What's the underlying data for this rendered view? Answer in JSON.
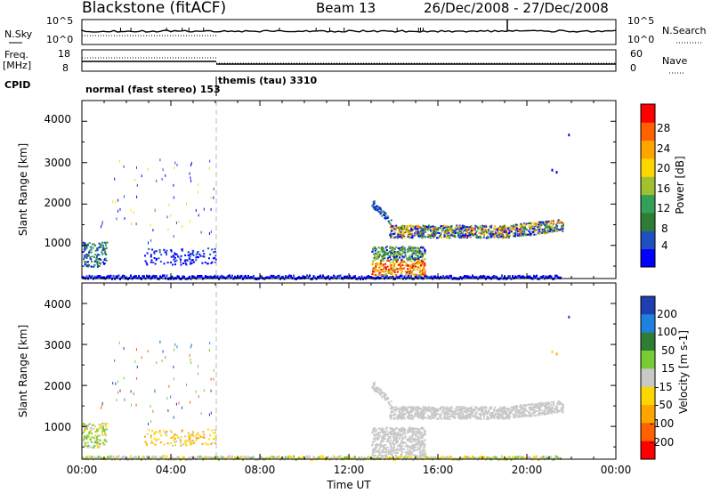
{
  "header": {
    "station": "Blackstone (fitACF)",
    "beam": "Beam 13",
    "dates": "26/Dec/2008 - 27/Dec/2008"
  },
  "strips": {
    "nsky_label": "N.Sky",
    "nsky_ticks": [
      "10^5",
      "10^0"
    ],
    "nsearch_label": "N.Search",
    "nsearch_ticks": [
      "10^5",
      "10^0"
    ],
    "freq_label_1": "Freq.",
    "freq_label_2": "[MHz]",
    "freq_ticks": [
      "18",
      "8"
    ],
    "nave_label": "Nave",
    "nave_ticks": [
      "60",
      "0"
    ],
    "cpid_label": "CPID",
    "cpid_1": "normal (fast stereo) 153",
    "cpid_2": "themis (tau) 3310"
  },
  "chart_data": [
    {
      "type": "scatter",
      "panel": "power",
      "xlabel": "",
      "ylabel": "Slant Range [km]",
      "ylim": [
        200,
        4500
      ],
      "yticks": [
        "4000",
        "3000",
        "2000",
        "1000"
      ],
      "xlim": [
        0,
        24
      ],
      "colorbar_label": "Power [dB]",
      "colorbar_ticks": [
        "28",
        "24",
        "20",
        "16",
        "12",
        "8",
        "4"
      ],
      "colors": [
        "#0000ff",
        "#2050c0",
        "#2e7d32",
        "#33a05a",
        "#a0c030",
        "#ffd700",
        "#ffa500",
        "#ff6000",
        "#ff0000"
      ]
    },
    {
      "type": "scatter",
      "panel": "velocity",
      "xlabel": "Time UT",
      "ylabel": "Slant Range [km]",
      "ylim": [
        200,
        4500
      ],
      "yticks": [
        "4000",
        "3000",
        "2000",
        "1000"
      ],
      "xlim": [
        0,
        24
      ],
      "xticks": [
        "00:00",
        "04:00",
        "08:00",
        "12:00",
        "16:00",
        "20:00",
        "00:00"
      ],
      "colorbar_label": "Velocity [m s-1]",
      "colorbar_ticks": [
        "200",
        "100",
        "50",
        "15",
        "-15",
        "-50",
        "-100",
        "-200"
      ],
      "colors": [
        "#1e3fb0",
        "#2080e0",
        "#2e7d32",
        "#77cc33",
        "#c8c8c8",
        "#ffd700",
        "#ffa500",
        "#ff6000",
        "#ff0000"
      ]
    }
  ]
}
